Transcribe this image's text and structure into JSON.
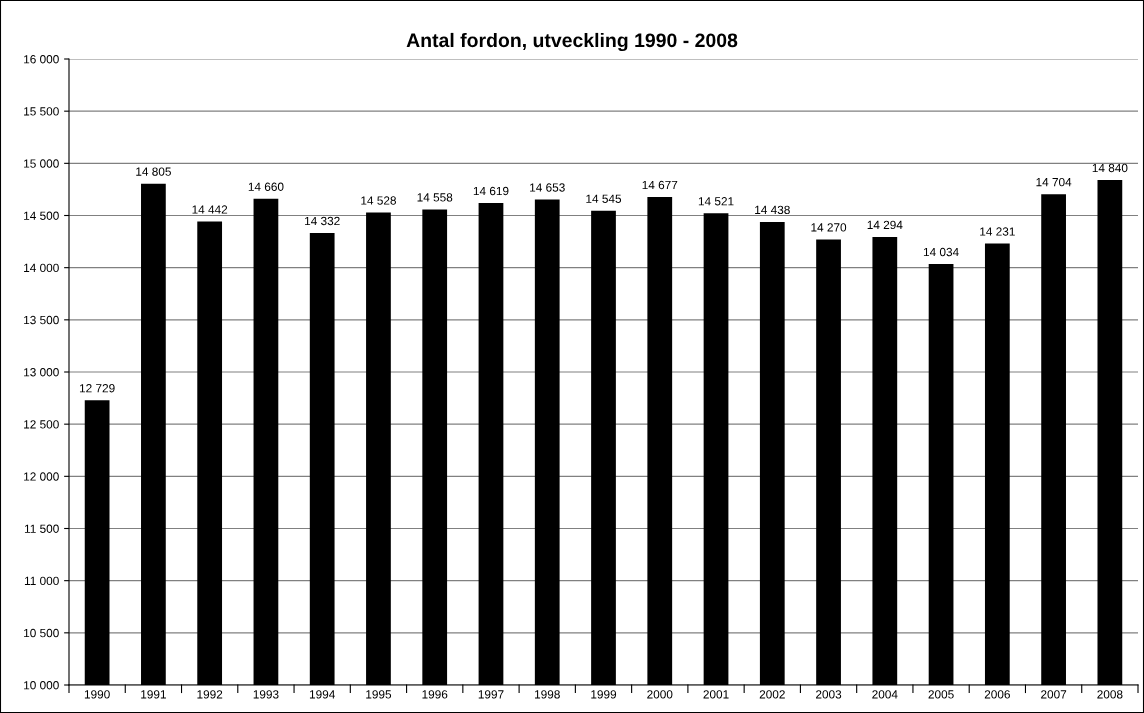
{
  "chart_data": {
    "type": "bar",
    "title": "Antal fordon, utveckling 1990 - 2008",
    "categories": [
      "1990",
      "1991",
      "1992",
      "1993",
      "1994",
      "1995",
      "1996",
      "1997",
      "1998",
      "1999",
      "2000",
      "2001",
      "2002",
      "2003",
      "2004",
      "2005",
      "2006",
      "2007",
      "2008"
    ],
    "values": [
      12729,
      14805,
      14442,
      14660,
      14332,
      14528,
      14558,
      14619,
      14653,
      14545,
      14677,
      14521,
      14438,
      14270,
      14294,
      14034,
      14231,
      14704,
      14840
    ],
    "value_labels": [
      "12 729",
      "14 805",
      "14 442",
      "14 660",
      "14 332",
      "14 528",
      "14 558",
      "14 619",
      "14 653",
      "14 545",
      "14 677",
      "14 521",
      "14 438",
      "14 270",
      "14 294",
      "14 034",
      "14 231",
      "14 704",
      "14 840"
    ],
    "color": "#000000",
    "ylim": [
      10000,
      16000
    ],
    "yticks": [
      {
        "value": 10000,
        "label": "10 000"
      },
      {
        "value": 10500,
        "label": "10 500"
      },
      {
        "value": 11000,
        "label": "11 000"
      },
      {
        "value": 11500,
        "label": "11 500"
      },
      {
        "value": 12000,
        "label": "12 000"
      },
      {
        "value": 12500,
        "label": "12 500"
      },
      {
        "value": 13000,
        "label": "13 000"
      },
      {
        "value": 13500,
        "label": "13 500"
      },
      {
        "value": 14000,
        "label": "14 000"
      },
      {
        "value": 14500,
        "label": "14 500"
      },
      {
        "value": 15000,
        "label": "15 000"
      },
      {
        "value": 15500,
        "label": "15 500"
      },
      {
        "value": 16000,
        "label": "16 000"
      }
    ],
    "grid": "y"
  }
}
